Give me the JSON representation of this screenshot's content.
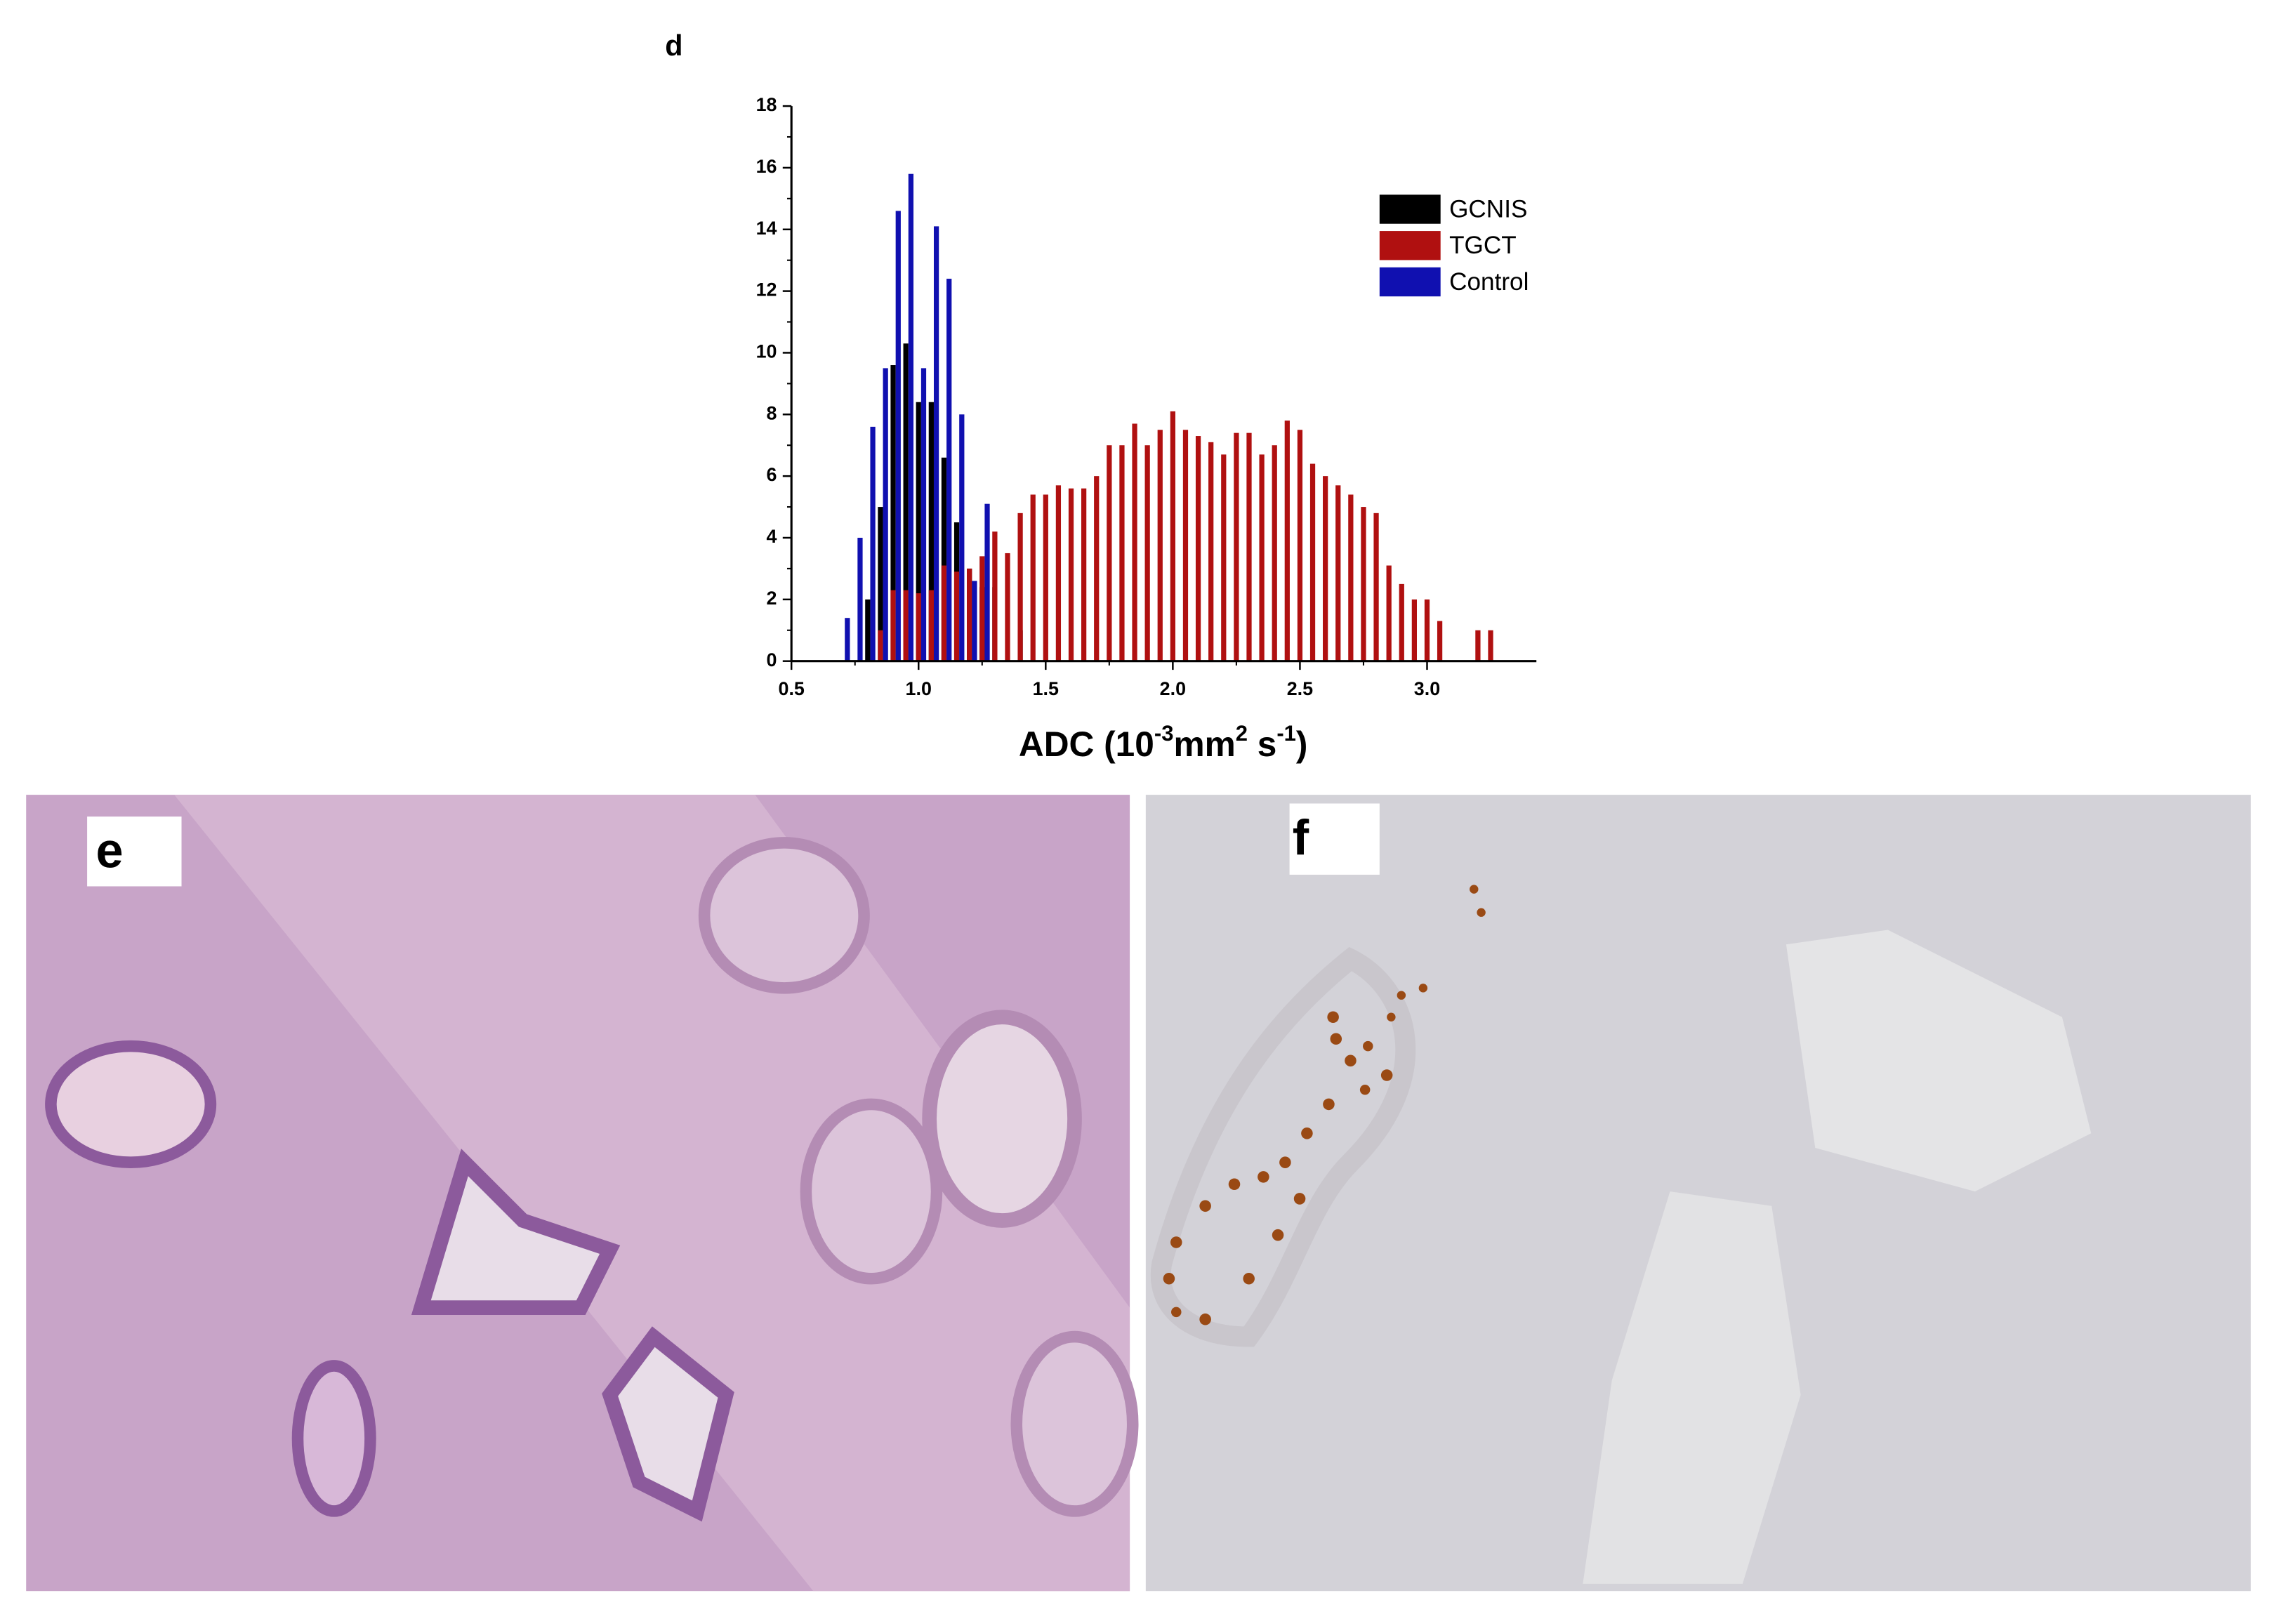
{
  "chart_data": {
    "type": "bar",
    "title": "d",
    "x_label": {
      "parts": [
        "ADC (10",
        "-3",
        "mm",
        "2",
        " s",
        "-1",
        ")"
      ]
    },
    "xlim": [
      0.5,
      3.43
    ],
    "ylim": [
      0,
      18
    ],
    "xticks": [
      0.5,
      {
        "value": 1.0,
        "label": "1.0"
      },
      1.5,
      {
        "value": 2.0,
        "label": "2.0"
      },
      2.5,
      {
        "value": 3.0,
        "label": "3.0"
      }
    ],
    "yticks": [
      0,
      2,
      4,
      6,
      8,
      10,
      12,
      14,
      16,
      18
    ],
    "bar_width": 0.02,
    "legend": "upper right",
    "series": [
      {
        "name": "GCNIS",
        "color": "#000000",
        "x": [
          0.8,
          0.85,
          0.9,
          0.95,
          1.0,
          1.05,
          1.1,
          1.15,
          1.2,
          1.25,
          1.3,
          1.4
        ],
        "values": [
          2.0,
          5.0,
          9.6,
          10.3,
          8.4,
          8.4,
          6.6,
          4.5,
          3.0,
          2.4,
          2.4,
          1.0
        ]
      },
      {
        "name": "TGCT",
        "color": "#b01010",
        "x": [
          0.85,
          0.9,
          0.95,
          1.0,
          1.05,
          1.1,
          1.15,
          1.2,
          1.25,
          1.3,
          1.35,
          1.4,
          1.45,
          1.5,
          1.55,
          1.6,
          1.65,
          1.7,
          1.75,
          1.8,
          1.85,
          1.9,
          1.95,
          2.0,
          2.05,
          2.1,
          2.15,
          2.2,
          2.25,
          2.3,
          2.35,
          2.4,
          2.45,
          2.5,
          2.55,
          2.6,
          2.65,
          2.7,
          2.75,
          2.8,
          2.85,
          2.9,
          2.95,
          3.0,
          3.05,
          3.2,
          3.25
        ],
        "values": [
          1.0,
          2.3,
          2.3,
          2.2,
          2.3,
          3.1,
          2.9,
          3.0,
          3.4,
          4.2,
          3.5,
          4.8,
          5.4,
          5.4,
          5.7,
          5.6,
          5.6,
          6.0,
          7.0,
          7.0,
          7.7,
          7.0,
          7.5,
          8.1,
          7.5,
          7.3,
          7.1,
          6.7,
          7.4,
          7.4,
          6.7,
          7.0,
          7.8,
          7.5,
          6.4,
          6.0,
          5.7,
          5.4,
          5.0,
          4.8,
          3.1,
          2.5,
          2.0,
          2.0,
          1.3,
          1.0,
          1.0
        ]
      },
      {
        "name": "Control",
        "color": "#1010b0",
        "x": [
          0.72,
          0.77,
          0.82,
          0.87,
          0.92,
          0.97,
          1.02,
          1.07,
          1.12,
          1.17,
          1.22,
          1.27
        ],
        "values": [
          1.4,
          4.0,
          7.6,
          9.5,
          14.6,
          15.8,
          9.5,
          14.1,
          12.4,
          8.0,
          2.6,
          5.1
        ]
      }
    ]
  },
  "panels": [
    {
      "label": "e"
    },
    {
      "label": "f"
    }
  ]
}
